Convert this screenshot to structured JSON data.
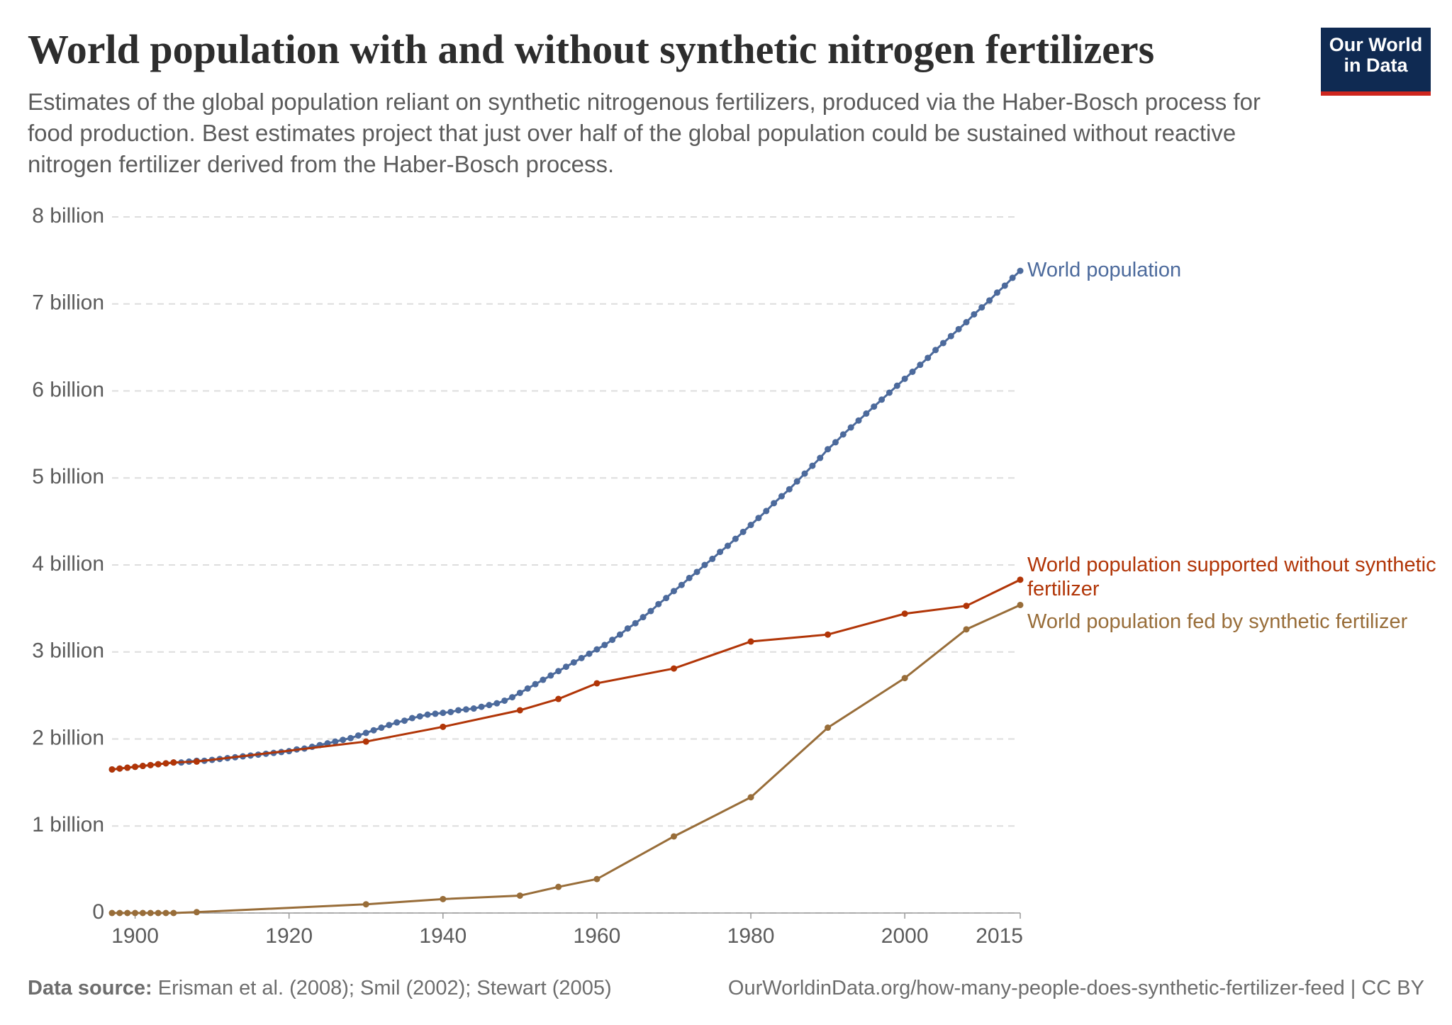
{
  "chart_data": {
    "type": "line",
    "title": "World population with and without synthetic nitrogen fertilizers",
    "subtitle": "Estimates of the global population reliant on synthetic nitrogenous fertilizers, produced via the Haber-Bosch process for food production. Best estimates project that just over half of the global population could be sustained without reactive nitrogen fertilizer derived from the Haber-Bosch process.",
    "xlim": [
      1897,
      2015
    ],
    "xticks": [
      1900,
      1920,
      1940,
      1960,
      1980,
      2000,
      2015
    ],
    "ylim": [
      0,
      8000000000
    ],
    "yticks": [
      {
        "value": 0,
        "label": "0"
      },
      {
        "value": 1000000000,
        "label": "1 billion"
      },
      {
        "value": 2000000000,
        "label": "2 billion"
      },
      {
        "value": 3000000000,
        "label": "3 billion"
      },
      {
        "value": 4000000000,
        "label": "4 billion"
      },
      {
        "value": 5000000000,
        "label": "5 billion"
      },
      {
        "value": 6000000000,
        "label": "6 billion"
      },
      {
        "value": 7000000000,
        "label": "7 billion"
      },
      {
        "value": 8000000000,
        "label": "8 billion"
      }
    ],
    "grid": true,
    "series": [
      {
        "name": "World population",
        "color": "#4c6a9c",
        "x": [
          1897,
          1898,
          1899,
          1900,
          1901,
          1902,
          1903,
          1904,
          1905,
          1906,
          1907,
          1908,
          1909,
          1910,
          1911,
          1912,
          1913,
          1914,
          1915,
          1916,
          1917,
          1918,
          1919,
          1920,
          1921,
          1922,
          1923,
          1924,
          1925,
          1926,
          1927,
          1928,
          1929,
          1930,
          1931,
          1932,
          1933,
          1934,
          1935,
          1936,
          1937,
          1938,
          1939,
          1940,
          1941,
          1942,
          1943,
          1944,
          1945,
          1946,
          1947,
          1948,
          1949,
          1950,
          1951,
          1952,
          1953,
          1954,
          1955,
          1956,
          1957,
          1958,
          1959,
          1960,
          1961,
          1962,
          1963,
          1964,
          1965,
          1966,
          1967,
          1968,
          1969,
          1970,
          1971,
          1972,
          1973,
          1974,
          1975,
          1976,
          1977,
          1978,
          1979,
          1980,
          1981,
          1982,
          1983,
          1984,
          1985,
          1986,
          1987,
          1988,
          1989,
          1990,
          1991,
          1992,
          1993,
          1994,
          1995,
          1996,
          1997,
          1998,
          1999,
          2000,
          2001,
          2002,
          2003,
          2004,
          2005,
          2006,
          2007,
          2008,
          2009,
          2010,
          2011,
          2012,
          2013,
          2014,
          2015
        ],
        "values": [
          1650000000.0,
          1660000000.0,
          1670000000.0,
          1680000000.0,
          1690000000.0,
          1700000000.0,
          1710000000.0,
          1720000000.0,
          1730000000.0,
          1730000000.0,
          1740000000.0,
          1750000000.0,
          1750000000.0,
          1760000000.0,
          1770000000.0,
          1780000000.0,
          1790000000.0,
          1800000000.0,
          1810000000.0,
          1820000000.0,
          1830000000.0,
          1840000000.0,
          1850000000.0,
          1860000000.0,
          1880000000.0,
          1890000000.0,
          1910000000.0,
          1930000000.0,
          1950000000.0,
          1970000000.0,
          1990000000.0,
          2010000000.0,
          2040000000.0,
          2070000000.0,
          2100000000.0,
          2130000000.0,
          2160000000.0,
          2190000000.0,
          2210000000.0,
          2240000000.0,
          2260000000.0,
          2280000000.0,
          2290000000.0,
          2300000000.0,
          2310000000.0,
          2330000000.0,
          2340000000.0,
          2350000000.0,
          2370000000.0,
          2390000000.0,
          2410000000.0,
          2440000000.0,
          2480000000.0,
          2530000000.0,
          2580000000.0,
          2630000000.0,
          2680000000.0,
          2730000000.0,
          2780000000.0,
          2830000000.0,
          2880000000.0,
          2930000000.0,
          2980000000.0,
          3030000000.0,
          3080000000.0,
          3140000000.0,
          3200000000.0,
          3270000000.0,
          3330000000.0,
          3400000000.0,
          3470000000.0,
          3550000000.0,
          3620000000.0,
          3700000000.0,
          3770000000.0,
          3850000000.0,
          3920000000.0,
          4000000000.0,
          4070000000.0,
          4150000000.0,
          4220000000.0,
          4300000000.0,
          4380000000.0,
          4460000000.0,
          4540000000.0,
          4620000000.0,
          4710000000.0,
          4790000000.0,
          4870000000.0,
          4960000000.0,
          5050000000.0,
          5140000000.0,
          5230000000.0,
          5330000000.0,
          5410000000.0,
          5500000000.0,
          5580000000.0,
          5660000000.0,
          5740000000.0,
          5820000000.0,
          5900000000.0,
          5980000000.0,
          6060000000.0,
          6140000000.0,
          6220000000.0,
          6300000000.0,
          6380000000.0,
          6470000000.0,
          6550000000.0,
          6630000000.0,
          6710000000.0,
          6790000000.0,
          6880000000.0,
          6960000000.0,
          7040000000.0,
          7130000000.0,
          7210000000.0,
          7300000000.0,
          7380000000.0
        ]
      },
      {
        "name": "World population supported without synthetic fertilizer",
        "color": "#b13507",
        "x": [
          1897,
          1898,
          1899,
          1900,
          1901,
          1902,
          1903,
          1904,
          1905,
          1908,
          1930,
          1940,
          1950,
          1955,
          1960,
          1970,
          1980,
          1990,
          2000,
          2008,
          2015
        ],
        "values": [
          1650000000.0,
          1660000000.0,
          1670000000.0,
          1680000000.0,
          1690000000.0,
          1700000000.0,
          1710000000.0,
          1720000000.0,
          1730000000.0,
          1740000000.0,
          1970000000.0,
          2140000000.0,
          2330000000.0,
          2460000000.0,
          2640000000.0,
          2810000000.0,
          3120000000.0,
          3200000000.0,
          3440000000.0,
          3530000000.0,
          3830000000.0
        ]
      },
      {
        "name": "World population fed by synthetic fertilizer",
        "color": "#986d39",
        "x": [
          1897,
          1898,
          1899,
          1900,
          1901,
          1902,
          1903,
          1904,
          1905,
          1908,
          1930,
          1940,
          1950,
          1955,
          1960,
          1970,
          1980,
          1990,
          2000,
          2008,
          2015
        ],
        "values": [
          0,
          0,
          0,
          0,
          0,
          0,
          0,
          0,
          0,
          10000000.0,
          100000000.0,
          160000000.0,
          200000000.0,
          300000000.0,
          390000000.0,
          880000000.0,
          1330000000.0,
          2130000000.0,
          2700000000.0,
          3260000000.0,
          3540000000.0
        ]
      }
    ],
    "source_label": "Data source:",
    "source": "Erisman et al. (2008); Smil (2002); Stewart (2005)",
    "url": "OurWorldinData.org/how-many-people-does-synthetic-fertilizer-feed | CC BY",
    "logo": [
      "Our World",
      "in Data"
    ]
  }
}
